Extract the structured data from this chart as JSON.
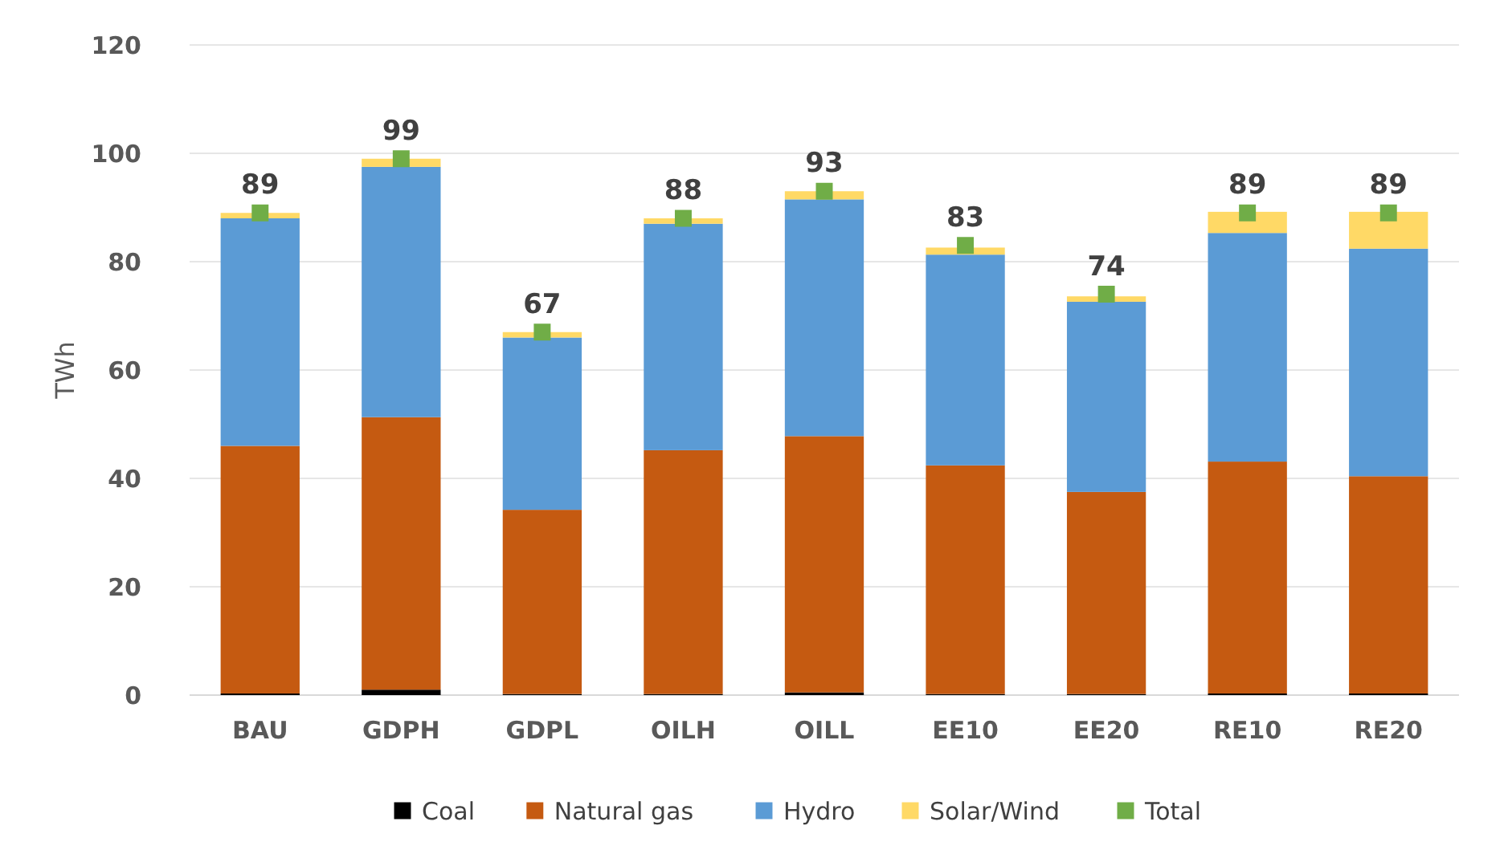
{
  "chart_data": {
    "type": "bar",
    "stacked": true,
    "ylabel": "TWh",
    "categories": [
      "BAU",
      "GDPH",
      "GDPL",
      "OILH",
      "OILL",
      "EE10",
      "EE20",
      "RE10",
      "RE20"
    ],
    "ylim": [
      0,
      120
    ],
    "yticks": [
      0,
      20,
      40,
      60,
      80,
      100,
      120
    ],
    "grid": "y",
    "legend": "bottom",
    "series": [
      {
        "name": "Coal",
        "color": "#000000",
        "values": [
          0.3,
          1,
          0.2,
          0.2,
          0.5,
          0.2,
          0.2,
          0.3,
          0.3
        ]
      },
      {
        "name": "Natural gas",
        "color": "#c55a11",
        "values": [
          45.7,
          50.3,
          34,
          45,
          47.3,
          42.2,
          37.3,
          42.8,
          40.1
        ]
      },
      {
        "name": "Hydro",
        "color": "#5b9bd5",
        "values": [
          42,
          46.2,
          31.8,
          41.8,
          43.7,
          38.9,
          35.1,
          42.2,
          42
        ]
      },
      {
        "name": "Solar/Wind",
        "color": "#ffd966",
        "values": [
          1,
          1.5,
          1,
          1,
          1.5,
          1.3,
          1,
          3.9,
          6.8
        ]
      },
      {
        "name": "Total",
        "type": "scatter",
        "marker": "square",
        "color": "#70ad47",
        "x": [
          "BAU",
          "GDPH",
          "GDPL",
          "OILH",
          "OILL",
          "EE10",
          "EE20",
          "RE10",
          "RE20"
        ],
        "values": [
          89,
          99,
          67,
          88,
          93,
          83,
          74,
          89,
          89
        ],
        "value_labels": [
          "89",
          "99",
          "67",
          "88",
          "93",
          "83",
          "74",
          "89",
          "89"
        ]
      }
    ]
  }
}
